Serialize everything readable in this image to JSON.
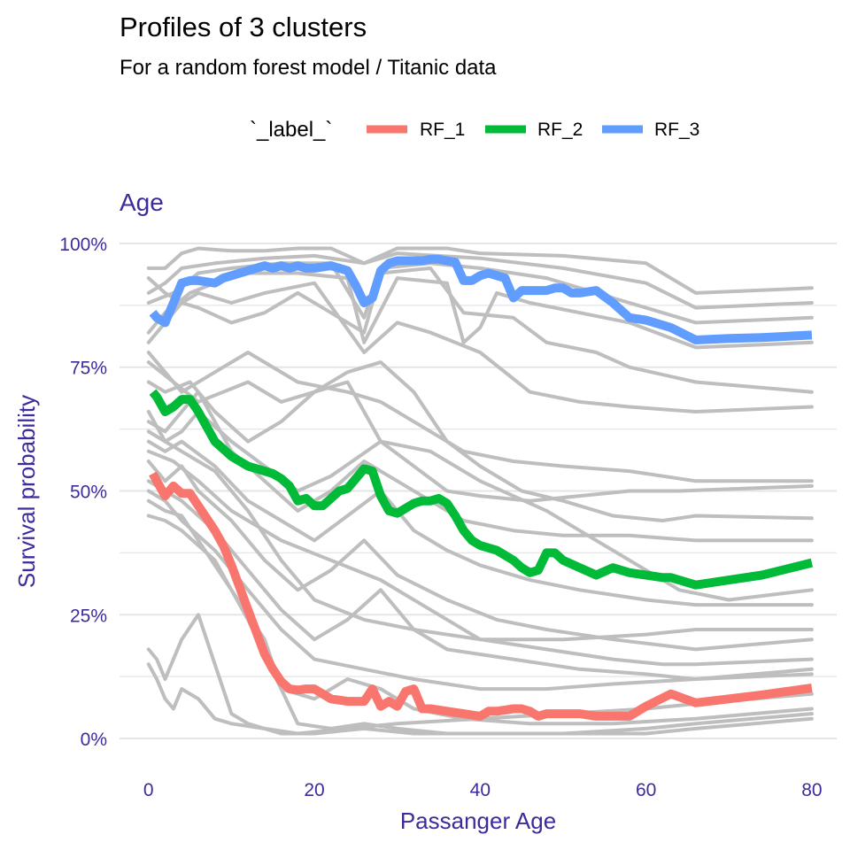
{
  "chart_data": {
    "type": "line",
    "title": "Profiles of 3 clusters",
    "subtitle": "For a random forest model / Titanic data",
    "panel_title": "Age",
    "xlabel": "Passanger Age",
    "ylabel": "Survival probability",
    "xlim": [
      -3.5,
      83
    ],
    "ylim": [
      -0.05,
      1.05
    ],
    "x_ticks": [
      0,
      20,
      40,
      60,
      80
    ],
    "x_tick_labels": [
      "0",
      "20",
      "40",
      "60",
      "80"
    ],
    "y_ticks": [
      0,
      0.25,
      0.5,
      0.75,
      1.0
    ],
    "y_tick_labels": [
      "0%",
      "25%",
      "50%",
      "75%",
      "100%"
    ],
    "grid": true,
    "legend": {
      "title": "`_label_`",
      "position": "top",
      "entries": [
        "RF_1",
        "RF_2",
        "RF_3"
      ]
    },
    "colors": {
      "accent": "#3F2A9B",
      "RF_1": "#F8766D",
      "RF_2": "#00BA38",
      "RF_3": "#619CFF",
      "background_lines": "#BEBEBE",
      "grid": "#E5E5E5"
    },
    "series": [
      {
        "name": "RF_1",
        "color": "#F8766D",
        "x": [
          0.5,
          1,
          2,
          3,
          4,
          5,
          6,
          8,
          9,
          10,
          12,
          14,
          15,
          16,
          17,
          18,
          19,
          20,
          21,
          22,
          24,
          26,
          27,
          28,
          29,
          30,
          31,
          32,
          33,
          34,
          36,
          38,
          40,
          41,
          42,
          44,
          45,
          46,
          47,
          48,
          50,
          52,
          54,
          56,
          58,
          60,
          63,
          66,
          70,
          74,
          80
        ],
        "y": [
          0.535,
          0.52,
          0.49,
          0.51,
          0.495,
          0.495,
          0.47,
          0.42,
          0.39,
          0.35,
          0.26,
          0.17,
          0.14,
          0.115,
          0.1,
          0.098,
          0.1,
          0.1,
          0.09,
          0.08,
          0.075,
          0.075,
          0.1,
          0.065,
          0.075,
          0.065,
          0.095,
          0.1,
          0.06,
          0.06,
          0.055,
          0.05,
          0.045,
          0.055,
          0.055,
          0.06,
          0.06,
          0.055,
          0.045,
          0.05,
          0.05,
          0.05,
          0.045,
          0.045,
          0.045,
          0.065,
          0.09,
          0.072,
          0.08,
          0.088,
          0.102
        ]
      },
      {
        "name": "RF_2",
        "color": "#00BA38",
        "x": [
          0.5,
          1,
          2,
          3,
          4,
          5,
          6,
          8,
          10,
          12,
          14,
          15,
          16,
          17,
          18,
          19,
          20,
          21,
          22,
          23,
          24,
          25,
          26,
          27,
          28,
          29,
          30,
          31,
          32,
          33,
          34,
          35,
          36,
          37,
          38,
          39,
          40,
          42,
          44,
          45,
          46,
          47,
          48,
          49,
          50,
          52,
          54,
          56,
          58,
          60,
          62,
          63,
          66,
          70,
          74,
          80
        ],
        "y": [
          0.7,
          0.69,
          0.66,
          0.67,
          0.685,
          0.685,
          0.66,
          0.6,
          0.57,
          0.55,
          0.54,
          0.535,
          0.525,
          0.51,
          0.48,
          0.485,
          0.47,
          0.47,
          0.485,
          0.5,
          0.505,
          0.525,
          0.545,
          0.54,
          0.49,
          0.46,
          0.455,
          0.465,
          0.475,
          0.48,
          0.48,
          0.485,
          0.475,
          0.45,
          0.42,
          0.4,
          0.39,
          0.38,
          0.36,
          0.345,
          0.335,
          0.34,
          0.375,
          0.375,
          0.36,
          0.345,
          0.33,
          0.345,
          0.335,
          0.33,
          0.325,
          0.325,
          0.31,
          0.32,
          0.33,
          0.355
        ]
      },
      {
        "name": "RF_3",
        "color": "#619CFF",
        "x": [
          0.5,
          1,
          2,
          3,
          4,
          5,
          6,
          8,
          9,
          10,
          12,
          14,
          15,
          16,
          17,
          18,
          19,
          20,
          22,
          24,
          25,
          26,
          27,
          28,
          29,
          30,
          32,
          33,
          34,
          35,
          36,
          37,
          38,
          39,
          40,
          41,
          42,
          43,
          44,
          45,
          46,
          47,
          48,
          49,
          50,
          51,
          52,
          54,
          56,
          58,
          60,
          62,
          63,
          66,
          70,
          74,
          80
        ],
        "y": [
          0.86,
          0.85,
          0.84,
          0.88,
          0.92,
          0.925,
          0.925,
          0.92,
          0.93,
          0.935,
          0.945,
          0.955,
          0.95,
          0.955,
          0.95,
          0.955,
          0.95,
          0.95,
          0.955,
          0.945,
          0.915,
          0.88,
          0.89,
          0.945,
          0.96,
          0.965,
          0.965,
          0.965,
          0.968,
          0.968,
          0.965,
          0.962,
          0.925,
          0.925,
          0.935,
          0.94,
          0.935,
          0.93,
          0.89,
          0.905,
          0.905,
          0.905,
          0.905,
          0.91,
          0.91,
          0.9,
          0.9,
          0.905,
          0.88,
          0.85,
          0.845,
          0.835,
          0.83,
          0.805,
          0.808,
          0.81,
          0.815
        ]
      }
    ],
    "background_profiles": [
      {
        "x": [
          0,
          2,
          4,
          6,
          10,
          14,
          18,
          22,
          26,
          30,
          36,
          40,
          50,
          60,
          66,
          80
        ],
        "y": [
          0.95,
          0.95,
          0.98,
          0.99,
          0.985,
          0.985,
          0.99,
          0.99,
          0.96,
          0.99,
          0.99,
          0.98,
          0.975,
          0.96,
          0.9,
          0.91
        ]
      },
      {
        "x": [
          0,
          2,
          4,
          8,
          14,
          20,
          26,
          30,
          40,
          50,
          60,
          66,
          80
        ],
        "y": [
          0.9,
          0.92,
          0.95,
          0.96,
          0.97,
          0.975,
          0.96,
          0.98,
          0.97,
          0.95,
          0.92,
          0.87,
          0.88
        ]
      },
      {
        "x": [
          0,
          3,
          6,
          10,
          16,
          22,
          26,
          28,
          34,
          40,
          48,
          56,
          62,
          66,
          80
        ],
        "y": [
          0.88,
          0.9,
          0.94,
          0.95,
          0.96,
          0.96,
          0.85,
          0.95,
          0.96,
          0.95,
          0.93,
          0.89,
          0.86,
          0.84,
          0.85
        ]
      },
      {
        "x": [
          0,
          2,
          5,
          8,
          12,
          18,
          24,
          26,
          30,
          36,
          38,
          40,
          42,
          46,
          52,
          58,
          66,
          80
        ],
        "y": [
          0.82,
          0.86,
          0.9,
          0.92,
          0.94,
          0.94,
          0.93,
          0.8,
          0.93,
          0.92,
          0.8,
          0.83,
          0.9,
          0.88,
          0.86,
          0.84,
          0.79,
          0.8
        ]
      },
      {
        "x": [
          0,
          2,
          4,
          6,
          10,
          14,
          18,
          22,
          26,
          28,
          34,
          38,
          44,
          48,
          54,
          58,
          66,
          80
        ],
        "y": [
          0.8,
          0.84,
          0.88,
          0.87,
          0.84,
          0.86,
          0.9,
          0.86,
          0.82,
          0.94,
          0.95,
          0.86,
          0.85,
          0.8,
          0.78,
          0.75,
          0.72,
          0.7
        ]
      },
      {
        "x": [
          0,
          3,
          6,
          9,
          12,
          16,
          20,
          24,
          28,
          32,
          36,
          40,
          45,
          50,
          56,
          62,
          66,
          80
        ],
        "y": [
          0.76,
          0.72,
          0.68,
          0.7,
          0.72,
          0.68,
          0.7,
          0.74,
          0.76,
          0.7,
          0.6,
          0.55,
          0.5,
          0.48,
          0.45,
          0.44,
          0.45,
          0.445
        ]
      },
      {
        "x": [
          0,
          2,
          5,
          8,
          12,
          16,
          20,
          24,
          28,
          32,
          36,
          40,
          46,
          52,
          58,
          64,
          80
        ],
        "y": [
          0.72,
          0.7,
          0.72,
          0.66,
          0.6,
          0.64,
          0.7,
          0.72,
          0.6,
          0.55,
          0.5,
          0.49,
          0.48,
          0.49,
          0.5,
          0.5,
          0.51
        ]
      },
      {
        "x": [
          0,
          2,
          4,
          6,
          8,
          10,
          14,
          18,
          22,
          26,
          30,
          34,
          38,
          44,
          50,
          58,
          66,
          80
        ],
        "y": [
          0.64,
          0.62,
          0.66,
          0.7,
          0.64,
          0.58,
          0.52,
          0.46,
          0.5,
          0.56,
          0.52,
          0.48,
          0.44,
          0.42,
          0.41,
          0.41,
          0.4,
          0.4
        ]
      },
      {
        "x": [
          0,
          2,
          4,
          8,
          12,
          16,
          20,
          24,
          28,
          32,
          36,
          40,
          46,
          52,
          60,
          66,
          80
        ],
        "y": [
          0.6,
          0.58,
          0.6,
          0.55,
          0.48,
          0.44,
          0.4,
          0.45,
          0.5,
          0.42,
          0.38,
          0.35,
          0.32,
          0.3,
          0.28,
          0.27,
          0.27
        ]
      },
      {
        "x": [
          0,
          2,
          4,
          6,
          10,
          14,
          18,
          22,
          26,
          30,
          36,
          42,
          48,
          56,
          66,
          80
        ],
        "y": [
          0.56,
          0.52,
          0.55,
          0.5,
          0.44,
          0.36,
          0.3,
          0.34,
          0.4,
          0.33,
          0.28,
          0.24,
          0.22,
          0.2,
          0.18,
          0.2
        ]
      },
      {
        "x": [
          0,
          2,
          4,
          8,
          12,
          16,
          20,
          24,
          28,
          32,
          36,
          44,
          52,
          60,
          66,
          80
        ],
        "y": [
          0.52,
          0.5,
          0.48,
          0.42,
          0.34,
          0.26,
          0.2,
          0.24,
          0.3,
          0.22,
          0.18,
          0.16,
          0.14,
          0.13,
          0.12,
          0.14
        ]
      },
      {
        "x": [
          0,
          2,
          4,
          6,
          10,
          14,
          16,
          20,
          24,
          28,
          32,
          38,
          46,
          56,
          66,
          80
        ],
        "y": [
          0.48,
          0.46,
          0.45,
          0.4,
          0.3,
          0.2,
          0.1,
          0.08,
          0.12,
          0.1,
          0.06,
          0.04,
          0.03,
          0.03,
          0.04,
          0.06
        ]
      },
      {
        "x": [
          0,
          2,
          4,
          8,
          12,
          16,
          18,
          22,
          26,
          30,
          36,
          44,
          52,
          60,
          66,
          80
        ],
        "y": [
          0.45,
          0.44,
          0.42,
          0.36,
          0.24,
          0.1,
          0.03,
          0.02,
          0.03,
          0.02,
          0.01,
          0.01,
          0.01,
          0.01,
          0.02,
          0.04
        ]
      },
      {
        "x": [
          0,
          1,
          2,
          4,
          6,
          8,
          10,
          12,
          14,
          16,
          20,
          26,
          32,
          40,
          50,
          60,
          66,
          80
        ],
        "y": [
          0.18,
          0.16,
          0.12,
          0.2,
          0.25,
          0.15,
          0.05,
          0.03,
          0.02,
          0.01,
          0.01,
          0.02,
          0.01,
          0.01,
          0.01,
          0.02,
          0.03,
          0.05
        ]
      },
      {
        "x": [
          0,
          1,
          2,
          3,
          4,
          6,
          8,
          10,
          14,
          18,
          24,
          30,
          40,
          50,
          60,
          66,
          80
        ],
        "y": [
          0.15,
          0.12,
          0.08,
          0.06,
          0.1,
          0.08,
          0.04,
          0.03,
          0.02,
          0.01,
          0.02,
          0.03,
          0.04,
          0.05,
          0.06,
          0.07,
          0.09
        ]
      },
      {
        "x": [
          0,
          2,
          4,
          6,
          10,
          14,
          18,
          22,
          28,
          34,
          40,
          48,
          56,
          64,
          70,
          80
        ],
        "y": [
          0.66,
          0.6,
          0.62,
          0.66,
          0.6,
          0.55,
          0.5,
          0.53,
          0.6,
          0.58,
          0.52,
          0.46,
          0.38,
          0.3,
          0.28,
          0.3
        ]
      },
      {
        "x": [
          0,
          2,
          4,
          8,
          12,
          18,
          24,
          28,
          32,
          38,
          44,
          50,
          58,
          66,
          80
        ],
        "y": [
          0.78,
          0.74,
          0.7,
          0.74,
          0.78,
          0.72,
          0.7,
          0.68,
          0.64,
          0.58,
          0.56,
          0.55,
          0.54,
          0.52,
          0.52
        ]
      },
      {
        "x": [
          0,
          2,
          4,
          6,
          10,
          14,
          20,
          26,
          30,
          34,
          40,
          46,
          52,
          58,
          66,
          80
        ],
        "y": [
          0.93,
          0.9,
          0.88,
          0.9,
          0.88,
          0.9,
          0.92,
          0.78,
          0.84,
          0.82,
          0.78,
          0.7,
          0.68,
          0.67,
          0.66,
          0.67
        ]
      },
      {
        "x": [
          0,
          3,
          6,
          10,
          16,
          22,
          28,
          34,
          40,
          48,
          56,
          62,
          66,
          80
        ],
        "y": [
          0.58,
          0.56,
          0.52,
          0.46,
          0.4,
          0.36,
          0.32,
          0.26,
          0.2,
          0.18,
          0.16,
          0.15,
          0.15,
          0.16
        ]
      },
      {
        "x": [
          0,
          2,
          4,
          8,
          12,
          16,
          20,
          26,
          32,
          40,
          48,
          56,
          66,
          80
        ],
        "y": [
          0.5,
          0.48,
          0.44,
          0.38,
          0.3,
          0.22,
          0.16,
          0.14,
          0.12,
          0.1,
          0.1,
          0.11,
          0.12,
          0.13
        ]
      },
      {
        "x": [
          0,
          2,
          4,
          8,
          12,
          16,
          20,
          26,
          32,
          40,
          50,
          60,
          66,
          80
        ],
        "y": [
          0.62,
          0.6,
          0.58,
          0.54,
          0.46,
          0.36,
          0.28,
          0.24,
          0.22,
          0.2,
          0.2,
          0.21,
          0.22,
          0.22
        ]
      }
    ]
  }
}
